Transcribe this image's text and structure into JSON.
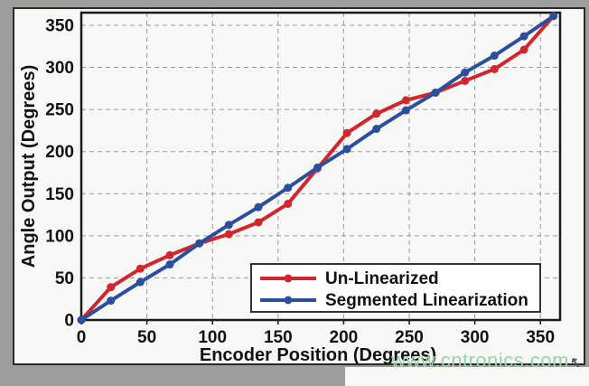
{
  "watermark": {
    "text": "www.cntronics.com"
  },
  "colors": {
    "red_series": "#d2262e",
    "blue_series": "#2b4f9e",
    "grid": "#999999",
    "axis": "#1a1a1a",
    "figure_bg": "#f7f7f5",
    "page_bg": "#9d9d9d",
    "watermark_green": "#98d3ab",
    "legend_border": "#333333"
  },
  "chart_data": {
    "type": "line",
    "title": "",
    "xlabel": "Encoder Position (Degrees)",
    "ylabel": "Angle Output (Degrees)",
    "xlim": [
      0,
      365
    ],
    "ylim": [
      0,
      365
    ],
    "xticks": [
      0,
      50,
      100,
      150,
      200,
      250,
      300,
      350
    ],
    "yticks": [
      0,
      50,
      100,
      150,
      200,
      250,
      300,
      350
    ],
    "grid": true,
    "grid_style": "dashed",
    "legend_position": "lower right",
    "x": [
      0,
      22.5,
      45,
      67.5,
      90,
      112.5,
      135,
      157.5,
      180,
      202.5,
      225,
      247.5,
      270,
      292.5,
      315,
      337.5,
      360
    ],
    "series": [
      {
        "name": "Un-Linearized",
        "color": "#d2262e",
        "marker": "circle",
        "values": [
          0,
          39,
          61,
          77,
          91,
          102,
          116,
          138,
          180,
          222,
          245,
          261,
          270,
          284,
          298,
          321,
          361
        ]
      },
      {
        "name": "Segmented Linearization",
        "color": "#2b4f9e",
        "marker": "circle",
        "values": [
          0,
          23,
          45,
          66,
          91,
          113,
          134,
          157,
          181,
          203,
          227,
          249,
          270,
          294,
          314,
          337,
          361
        ]
      }
    ]
  }
}
